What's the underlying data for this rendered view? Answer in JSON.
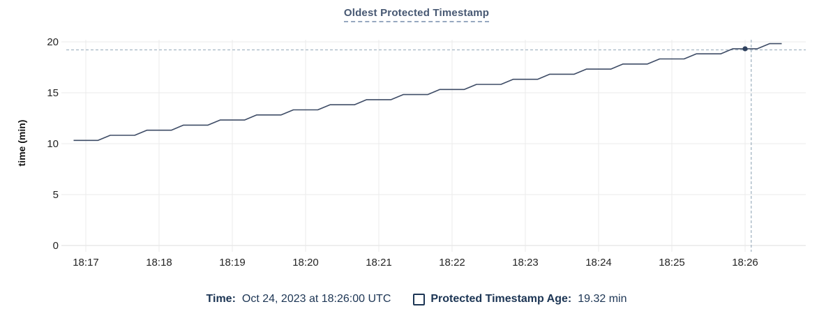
{
  "chart_data": {
    "type": "line",
    "title": "Oldest Protected Timestamp",
    "ylabel": "time (min)",
    "xlabel": "",
    "x_ticks": [
      "18:17",
      "18:18",
      "18:19",
      "18:20",
      "18:21",
      "18:22",
      "18:23",
      "18:24",
      "18:25",
      "18:26"
    ],
    "y_ticks": [
      0,
      5,
      10,
      15,
      20
    ],
    "ylim": [
      0,
      20
    ],
    "grid": true,
    "legend_position": "bottom",
    "series": [
      {
        "name": "Protected Timestamp Age",
        "unit": "min",
        "points": [
          [
            "18:16:50",
            10.32
          ],
          [
            "18:17:00",
            10.32
          ],
          [
            "18:17:10",
            10.32
          ],
          [
            "18:17:20",
            10.82
          ],
          [
            "18:17:30",
            10.82
          ],
          [
            "18:17:40",
            10.82
          ],
          [
            "18:17:50",
            11.32
          ],
          [
            "18:18:00",
            11.32
          ],
          [
            "18:18:10",
            11.32
          ],
          [
            "18:18:20",
            11.82
          ],
          [
            "18:18:30",
            11.82
          ],
          [
            "18:18:40",
            11.82
          ],
          [
            "18:18:50",
            12.32
          ],
          [
            "18:19:00",
            12.32
          ],
          [
            "18:19:10",
            12.32
          ],
          [
            "18:19:20",
            12.82
          ],
          [
            "18:19:30",
            12.82
          ],
          [
            "18:19:40",
            12.82
          ],
          [
            "18:19:50",
            13.32
          ],
          [
            "18:20:00",
            13.32
          ],
          [
            "18:20:10",
            13.32
          ],
          [
            "18:20:20",
            13.82
          ],
          [
            "18:20:30",
            13.82
          ],
          [
            "18:20:40",
            13.82
          ],
          [
            "18:20:50",
            14.32
          ],
          [
            "18:21:00",
            14.32
          ],
          [
            "18:21:10",
            14.32
          ],
          [
            "18:21:20",
            14.82
          ],
          [
            "18:21:30",
            14.82
          ],
          [
            "18:21:40",
            14.82
          ],
          [
            "18:21:50",
            15.32
          ],
          [
            "18:22:00",
            15.32
          ],
          [
            "18:22:10",
            15.32
          ],
          [
            "18:22:20",
            15.82
          ],
          [
            "18:22:30",
            15.82
          ],
          [
            "18:22:40",
            15.82
          ],
          [
            "18:22:50",
            16.32
          ],
          [
            "18:23:00",
            16.32
          ],
          [
            "18:23:10",
            16.32
          ],
          [
            "18:23:20",
            16.82
          ],
          [
            "18:23:30",
            16.82
          ],
          [
            "18:23:40",
            16.82
          ],
          [
            "18:23:50",
            17.32
          ],
          [
            "18:24:00",
            17.32
          ],
          [
            "18:24:10",
            17.32
          ],
          [
            "18:24:20",
            17.82
          ],
          [
            "18:24:30",
            17.82
          ],
          [
            "18:24:40",
            17.82
          ],
          [
            "18:24:50",
            18.32
          ],
          [
            "18:25:00",
            18.32
          ],
          [
            "18:25:10",
            18.32
          ],
          [
            "18:25:20",
            18.82
          ],
          [
            "18:25:30",
            18.82
          ],
          [
            "18:25:40",
            18.82
          ],
          [
            "18:25:50",
            19.32
          ],
          [
            "18:26:00",
            19.32
          ],
          [
            "18:26:10",
            19.32
          ],
          [
            "18:26:20",
            19.82
          ],
          [
            "18:26:30",
            19.82
          ]
        ]
      }
    ],
    "marker": {
      "time": "18:26:00",
      "value": 19.32
    },
    "crosshair": {
      "time": "18:26:05",
      "value": 19.21
    },
    "colors": {
      "line": "#3e4c66",
      "marker": "#2f415e",
      "crosshair": "#a4b5c3",
      "grid": "#ebebeb",
      "axis": "#dcdcdc",
      "tick_text": "#242424",
      "title": "#475872",
      "legend_text": "#1c3554"
    }
  },
  "hover": {
    "time_label": "Time:",
    "time_value": "Oct 24, 2023 at 18:26:00 UTC",
    "series_label": "Protected Timestamp Age:",
    "series_value": "19.32 min"
  }
}
